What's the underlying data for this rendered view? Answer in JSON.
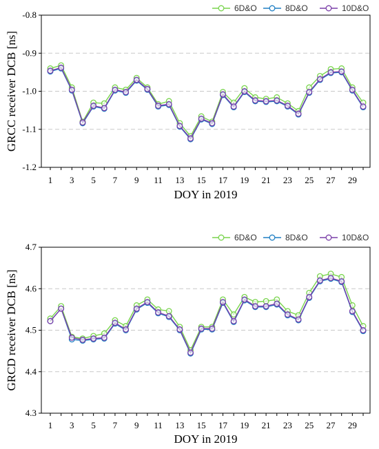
{
  "chart_data": [
    {
      "type": "line",
      "xlabel": "DOY in 2019",
      "ylabel": "GRCC receiver DCB [ns]",
      "xlim": [
        1,
        30
      ],
      "ylim": [
        -1.2,
        -0.8
      ],
      "yticks": [
        "-1.2",
        "-1.1",
        "-1.0",
        "-0.9",
        "-0.8"
      ],
      "xticks": [
        "1",
        "3",
        "5",
        "7",
        "9",
        "11",
        "13",
        "15",
        "17",
        "19",
        "21",
        "23",
        "25",
        "27",
        "29"
      ],
      "grid": "horizontal-dashed",
      "legend_position": "top-right",
      "x": [
        1,
        2,
        3,
        4,
        5,
        6,
        7,
        8,
        9,
        10,
        11,
        12,
        13,
        14,
        15,
        16,
        17,
        18,
        19,
        20,
        21,
        22,
        23,
        24,
        25,
        26,
        27,
        28,
        29,
        30
      ],
      "series": [
        {
          "name": "6D&O",
          "color": "#78d44c",
          "values": [
            -0.94,
            -0.932,
            -0.99,
            -1.08,
            -1.03,
            -1.032,
            -0.99,
            -0.996,
            -0.965,
            -0.99,
            -1.034,
            -1.026,
            -1.084,
            -1.118,
            -1.066,
            -1.08,
            -1.002,
            -1.03,
            -0.992,
            -1.016,
            -1.02,
            -1.016,
            -1.032,
            -1.052,
            -0.99,
            -0.96,
            -0.942,
            -0.94,
            -0.99,
            -1.03
          ]
        },
        {
          "name": "8D&O",
          "color": "#1f7fc4",
          "values": [
            -0.948,
            -0.94,
            -0.998,
            -1.084,
            -1.04,
            -1.046,
            -0.998,
            -1.004,
            -0.972,
            -0.996,
            -1.04,
            -1.036,
            -1.093,
            -1.126,
            -1.074,
            -1.086,
            -1.01,
            -1.042,
            -1.002,
            -1.026,
            -1.028,
            -1.026,
            -1.04,
            -1.061,
            -1.004,
            -0.97,
            -0.952,
            -0.95,
            -0.998,
            -1.042
          ]
        },
        {
          "name": "10D&O",
          "color": "#7a3ea8",
          "values": [
            -0.946,
            -0.938,
            -0.996,
            -1.082,
            -1.038,
            -1.044,
            -0.996,
            -1.002,
            -0.97,
            -0.994,
            -1.038,
            -1.034,
            -1.091,
            -1.124,
            -1.072,
            -1.084,
            -1.008,
            -1.04,
            -1.0,
            -1.024,
            -1.026,
            -1.024,
            -1.038,
            -1.059,
            -1.002,
            -0.968,
            -0.95,
            -0.948,
            -0.996,
            -1.04
          ]
        }
      ]
    },
    {
      "type": "line",
      "xlabel": "DOY in 2019",
      "ylabel": "GRCD receiver DCB [ns]",
      "xlim": [
        1,
        30
      ],
      "ylim": [
        4.3,
        4.7
      ],
      "yticks": [
        "4.3",
        "4.4",
        "4.5",
        "4.6",
        "4.7"
      ],
      "xticks": [
        "1",
        "3",
        "5",
        "7",
        "9",
        "11",
        "13",
        "15",
        "17",
        "19",
        "21",
        "23",
        "25",
        "27",
        "29"
      ],
      "grid": "horizontal-dashed",
      "legend_position": "top-right",
      "x": [
        1,
        2,
        3,
        4,
        5,
        6,
        7,
        8,
        9,
        10,
        11,
        12,
        13,
        14,
        15,
        16,
        17,
        18,
        19,
        20,
        21,
        22,
        23,
        24,
        25,
        26,
        27,
        28,
        29,
        30
      ],
      "series": [
        {
          "name": "6D&O",
          "color": "#78d44c",
          "values": [
            4.528,
            4.558,
            4.484,
            4.48,
            4.486,
            4.492,
            4.524,
            4.51,
            4.56,
            4.574,
            4.55,
            4.546,
            4.508,
            4.452,
            4.508,
            4.508,
            4.574,
            4.538,
            4.58,
            4.568,
            4.57,
            4.574,
            4.546,
            4.536,
            4.59,
            4.63,
            4.636,
            4.628,
            4.56,
            4.51
          ]
        },
        {
          "name": "8D&O",
          "color": "#1f7fc4",
          "values": [
            4.522,
            4.552,
            4.478,
            4.475,
            4.478,
            4.48,
            4.516,
            4.5,
            4.55,
            4.566,
            4.541,
            4.532,
            4.5,
            4.444,
            4.502,
            4.502,
            4.566,
            4.52,
            4.572,
            4.556,
            4.556,
            4.562,
            4.536,
            4.524,
            4.578,
            4.618,
            4.624,
            4.616,
            4.544,
            4.498
          ]
        },
        {
          "name": "10D&O",
          "color": "#7a3ea8",
          "values": [
            4.522,
            4.552,
            4.482,
            4.477,
            4.48,
            4.482,
            4.518,
            4.502,
            4.552,
            4.568,
            4.543,
            4.534,
            4.502,
            4.446,
            4.504,
            4.504,
            4.568,
            4.522,
            4.574,
            4.558,
            4.558,
            4.564,
            4.538,
            4.526,
            4.58,
            4.62,
            4.626,
            4.618,
            4.546,
            4.5
          ]
        }
      ]
    }
  ]
}
